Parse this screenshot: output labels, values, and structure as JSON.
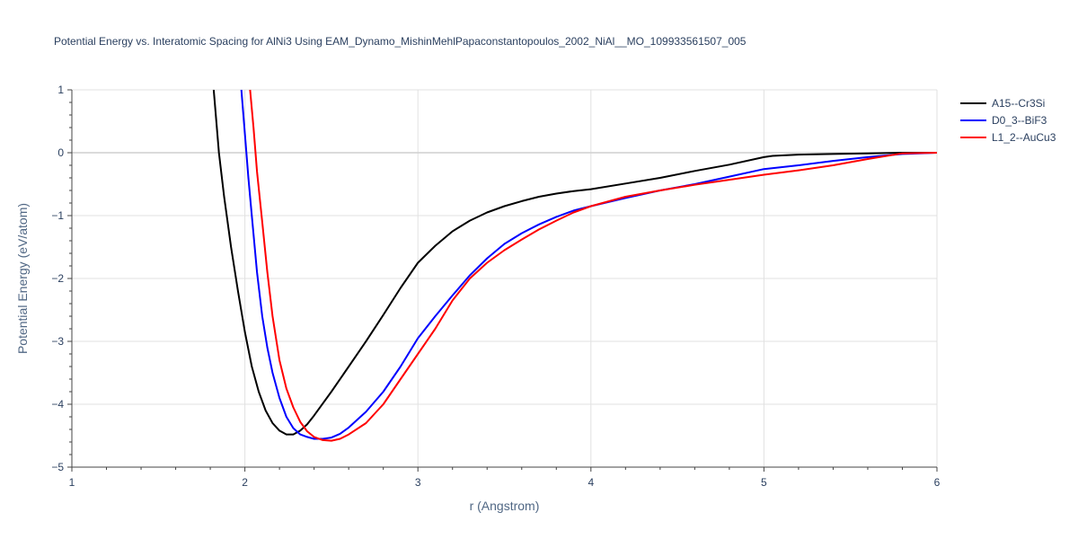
{
  "chart_data": {
    "type": "line",
    "title": "Potential Energy vs. Interatomic Spacing for AlNi3 Using EAM_Dynamo_MishinMehlPapaconstantopoulos_2002_NiAl__MO_109933561507_005",
    "xlabel": "r (Angstrom)",
    "ylabel": "Potential Energy (eV/atom)",
    "xlim": [
      1,
      6
    ],
    "ylim": [
      -5,
      1
    ],
    "xticks": [
      "1",
      "2",
      "3",
      "4",
      "5",
      "6"
    ],
    "yticks": [
      "1",
      "0",
      "−1",
      "−2",
      "−3",
      "−4",
      "−5"
    ],
    "grid": true,
    "legend_position": "top-right",
    "series": [
      {
        "name": "A15--Cr3Si",
        "color": "#000000",
        "x": [
          1.82,
          1.85,
          1.88,
          1.92,
          1.96,
          2.0,
          2.04,
          2.08,
          2.12,
          2.16,
          2.2,
          2.24,
          2.28,
          2.32,
          2.36,
          2.4,
          2.5,
          2.6,
          2.7,
          2.8,
          2.9,
          3.0,
          3.1,
          3.2,
          3.3,
          3.4,
          3.5,
          3.6,
          3.7,
          3.8,
          3.9,
          4.0,
          4.2,
          4.4,
          4.6,
          4.8,
          5.0,
          5.05,
          5.2,
          5.4,
          5.6,
          5.8,
          6.0
        ],
        "y": [
          1.0,
          0.0,
          -0.7,
          -1.5,
          -2.2,
          -2.85,
          -3.4,
          -3.8,
          -4.1,
          -4.3,
          -4.42,
          -4.48,
          -4.48,
          -4.42,
          -4.32,
          -4.18,
          -3.8,
          -3.4,
          -3.0,
          -2.58,
          -2.15,
          -1.75,
          -1.48,
          -1.25,
          -1.08,
          -0.95,
          -0.85,
          -0.77,
          -0.7,
          -0.65,
          -0.61,
          -0.58,
          -0.49,
          -0.4,
          -0.29,
          -0.19,
          -0.07,
          -0.05,
          -0.03,
          -0.02,
          -0.01,
          0.0,
          0.0
        ]
      },
      {
        "name": "D0_3--BiF3",
        "color": "#0000ff",
        "x": [
          1.98,
          2.0,
          2.02,
          2.04,
          2.07,
          2.1,
          2.13,
          2.16,
          2.2,
          2.24,
          2.28,
          2.32,
          2.36,
          2.4,
          2.45,
          2.5,
          2.55,
          2.6,
          2.7,
          2.8,
          2.9,
          3.0,
          3.1,
          3.2,
          3.3,
          3.4,
          3.5,
          3.6,
          3.7,
          3.8,
          3.9,
          4.0,
          4.2,
          4.4,
          4.6,
          4.8,
          5.0,
          5.2,
          5.4,
          5.6,
          5.8,
          6.0
        ],
        "y": [
          1.0,
          0.3,
          -0.4,
          -1.0,
          -1.9,
          -2.6,
          -3.1,
          -3.5,
          -3.9,
          -4.2,
          -4.38,
          -4.48,
          -4.52,
          -4.55,
          -4.55,
          -4.53,
          -4.47,
          -4.37,
          -4.12,
          -3.8,
          -3.4,
          -2.95,
          -2.6,
          -2.27,
          -1.95,
          -1.68,
          -1.45,
          -1.28,
          -1.14,
          -1.02,
          -0.92,
          -0.85,
          -0.72,
          -0.6,
          -0.5,
          -0.38,
          -0.26,
          -0.2,
          -0.13,
          -0.07,
          -0.02,
          0.0
        ]
      },
      {
        "name": "L1_2--AuCu3",
        "color": "#ff0000",
        "x": [
          2.03,
          2.05,
          2.07,
          2.1,
          2.13,
          2.16,
          2.2,
          2.24,
          2.28,
          2.32,
          2.36,
          2.4,
          2.45,
          2.5,
          2.55,
          2.6,
          2.7,
          2.8,
          2.9,
          3.0,
          3.1,
          3.2,
          3.3,
          3.4,
          3.5,
          3.6,
          3.7,
          3.8,
          3.9,
          4.0,
          4.2,
          4.4,
          4.6,
          4.8,
          5.0,
          5.2,
          5.4,
          5.6,
          5.8,
          6.0
        ],
        "y": [
          1.0,
          0.4,
          -0.3,
          -1.1,
          -1.9,
          -2.6,
          -3.3,
          -3.75,
          -4.05,
          -4.28,
          -4.43,
          -4.52,
          -4.57,
          -4.58,
          -4.55,
          -4.48,
          -4.3,
          -4.0,
          -3.6,
          -3.2,
          -2.8,
          -2.35,
          -2.0,
          -1.75,
          -1.55,
          -1.38,
          -1.22,
          -1.08,
          -0.95,
          -0.85,
          -0.7,
          -0.6,
          -0.51,
          -0.43,
          -0.35,
          -0.28,
          -0.2,
          -0.1,
          -0.01,
          0.0
        ]
      }
    ]
  }
}
